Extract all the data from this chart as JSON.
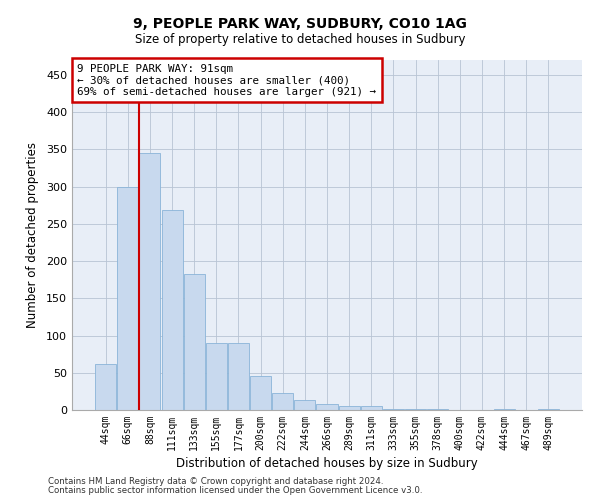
{
  "title1": "9, PEOPLE PARK WAY, SUDBURY, CO10 1AG",
  "title2": "Size of property relative to detached houses in Sudbury",
  "xlabel": "Distribution of detached houses by size in Sudbury",
  "ylabel": "Number of detached properties",
  "categories": [
    "44sqm",
    "66sqm",
    "88sqm",
    "111sqm",
    "133sqm",
    "155sqm",
    "177sqm",
    "200sqm",
    "222sqm",
    "244sqm",
    "266sqm",
    "289sqm",
    "311sqm",
    "333sqm",
    "355sqm",
    "378sqm",
    "400sqm",
    "422sqm",
    "444sqm",
    "467sqm",
    "489sqm"
  ],
  "values": [
    62,
    300,
    345,
    268,
    183,
    90,
    90,
    46,
    23,
    14,
    8,
    5,
    5,
    1,
    1,
    1,
    0,
    0,
    1,
    0,
    1
  ],
  "bar_color": "#c8d9ee",
  "bar_edge_color": "#8ab4d8",
  "vline_x": 1.5,
  "vline_color": "#cc0000",
  "annotation_text": "9 PEOPLE PARK WAY: 91sqm\n← 30% of detached houses are smaller (400)\n69% of semi-detached houses are larger (921) →",
  "annotation_box_color": "#ffffff",
  "annotation_box_edge": "#cc0000",
  "ylim": [
    0,
    470
  ],
  "yticks": [
    0,
    50,
    100,
    150,
    200,
    250,
    300,
    350,
    400,
    450
  ],
  "ax_facecolor": "#e8eef7",
  "background_color": "#ffffff",
  "grid_color": "#b8c4d4",
  "footer1": "Contains HM Land Registry data © Crown copyright and database right 2024.",
  "footer2": "Contains public sector information licensed under the Open Government Licence v3.0."
}
